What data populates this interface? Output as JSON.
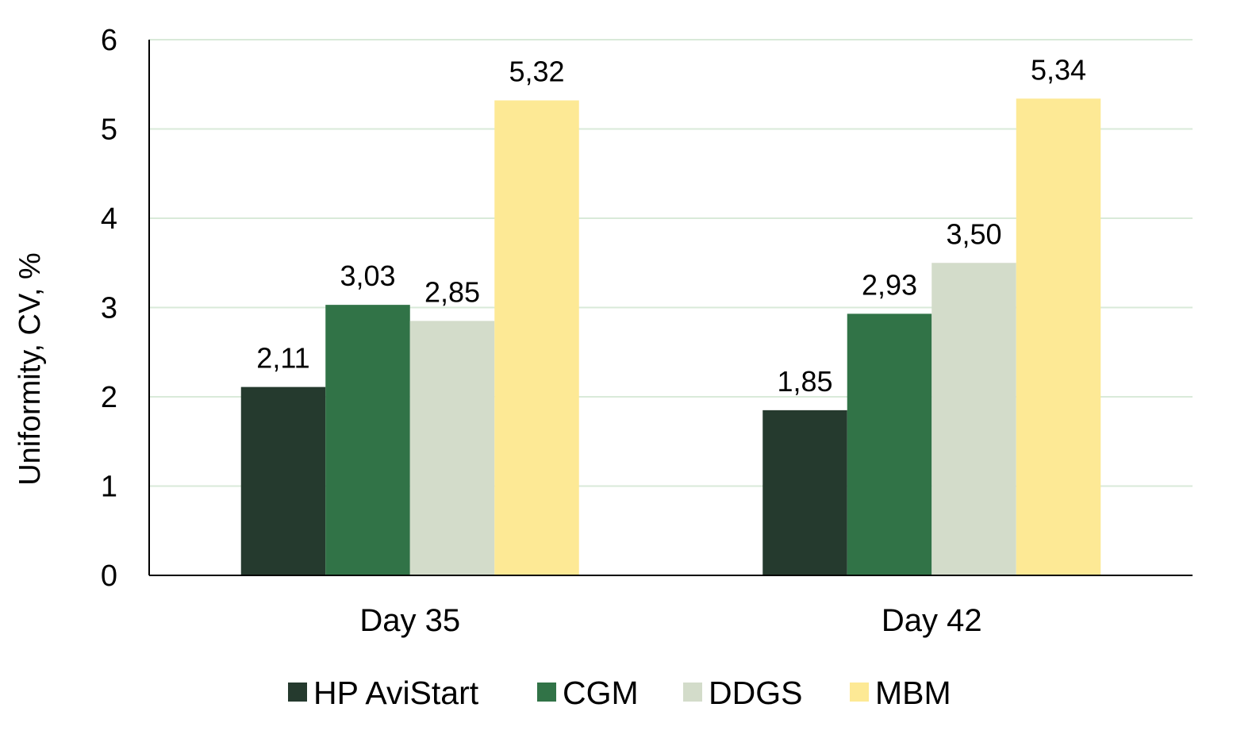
{
  "chart_data": {
    "type": "bar",
    "title": "",
    "xlabel": "",
    "ylabel": "Uniformity, CV, %",
    "ylim": [
      0,
      6
    ],
    "yticks": [
      0,
      1,
      2,
      3,
      4,
      5,
      6
    ],
    "grid": true,
    "legend": "bottom",
    "categories": [
      "Day 35",
      "Day 42"
    ],
    "series": [
      {
        "name": "HP AviStart",
        "color": "#253a2e",
        "values": [
          2.11,
          1.85
        ],
        "labels": [
          "2,11",
          "1,85"
        ]
      },
      {
        "name": "CGM",
        "color": "#317347",
        "values": [
          3.03,
          2.93
        ],
        "labels": [
          "3,03",
          "2,93"
        ]
      },
      {
        "name": "DDGS",
        "color": "#d3dcca",
        "values": [
          2.85,
          3.5
        ],
        "labels": [
          "2,85",
          "3,50"
        ]
      },
      {
        "name": "MBM",
        "color": "#fde995",
        "values": [
          5.32,
          5.34
        ],
        "labels": [
          "5,32",
          "5,34"
        ]
      }
    ]
  }
}
